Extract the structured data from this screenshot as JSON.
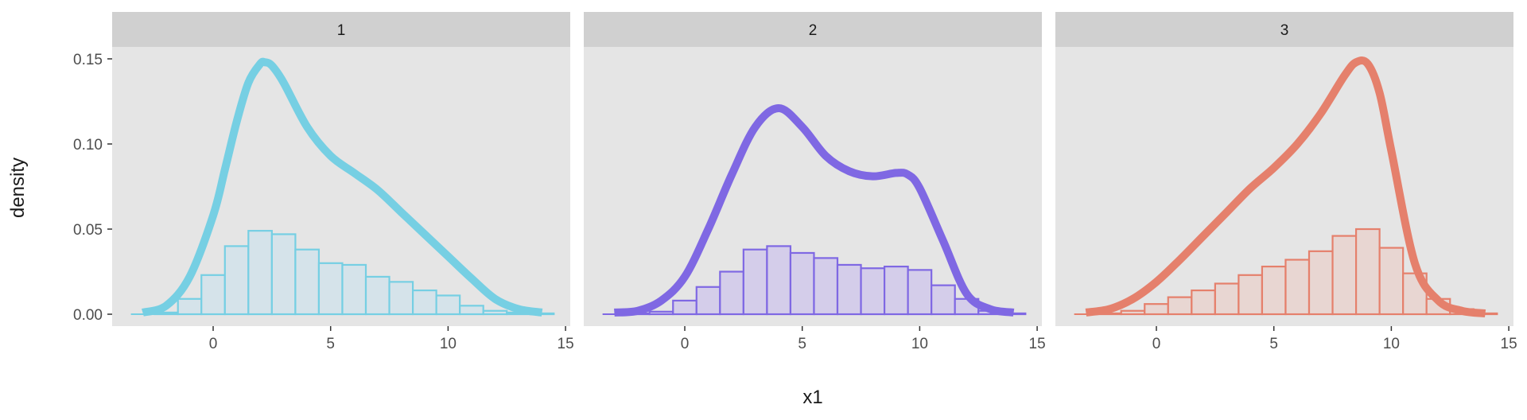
{
  "chart_data": {
    "type": "histogram+density",
    "xlabel": "x1",
    "ylabel": "density",
    "xlim": [
      -4.3,
      15.2
    ],
    "ylim": [
      -0.007,
      0.157
    ],
    "x_ticks": [
      0,
      5,
      10,
      15
    ],
    "y_ticks": [
      0.0,
      0.05,
      0.1,
      0.15
    ],
    "y_tick_labels": [
      "0.00",
      "0.05",
      "0.10",
      "0.15"
    ],
    "x_tick_labels": [
      "0",
      "5",
      "10",
      "15"
    ],
    "bin_width": 1,
    "panel_background": "#e5e5e5",
    "strip_background": "#d0d0d0",
    "facets": [
      {
        "label": "1",
        "color": "#76cfe3",
        "fill": "#d5e3ea",
        "range": [
          -3.5,
          14.5
        ],
        "bins": {
          "left_edges": [
            -2.5,
            -1.5,
            -0.5,
            0.5,
            1.5,
            2.5,
            3.5,
            4.5,
            5.5,
            6.5,
            7.5,
            8.5,
            9.5,
            10.5,
            11.5,
            12.5,
            13.5
          ],
          "densities": [
            0.001,
            0.009,
            0.023,
            0.04,
            0.049,
            0.047,
            0.038,
            0.03,
            0.029,
            0.022,
            0.019,
            0.014,
            0.011,
            0.005,
            0.002,
            0.001,
            0.0005
          ]
        },
        "density": {
          "x": [
            -3,
            -2,
            -1,
            0,
            0.5,
            1,
            1.5,
            2,
            2.2,
            2.5,
            3,
            4,
            5,
            6,
            7,
            8,
            9,
            10,
            11,
            12,
            13,
            14
          ],
          "y": [
            0.001,
            0.005,
            0.022,
            0.058,
            0.085,
            0.113,
            0.136,
            0.147,
            0.148,
            0.146,
            0.136,
            0.11,
            0.093,
            0.083,
            0.073,
            0.06,
            0.047,
            0.034,
            0.021,
            0.009,
            0.003,
            0.001
          ]
        }
      },
      {
        "label": "2",
        "color": "#7f68e3",
        "fill": "#d4cdea",
        "range": [
          -3.5,
          14.5
        ],
        "bins": {
          "left_edges": [
            -2.5,
            -1.5,
            -0.5,
            0.5,
            1.5,
            2.5,
            3.5,
            4.5,
            5.5,
            6.5,
            7.5,
            8.5,
            9.5,
            10.5,
            11.5,
            12.5,
            13.5
          ],
          "densities": [
            0.0005,
            0.0015,
            0.008,
            0.016,
            0.025,
            0.038,
            0.04,
            0.036,
            0.033,
            0.029,
            0.027,
            0.028,
            0.026,
            0.017,
            0.009,
            0.002,
            0.0005
          ]
        },
        "density": {
          "x": [
            -3,
            -2,
            -1,
            0,
            1,
            2,
            3,
            4,
            5,
            6,
            7,
            8,
            9,
            9.5,
            10,
            11,
            12,
            13,
            14
          ],
          "y": [
            0.001,
            0.002,
            0.008,
            0.022,
            0.05,
            0.082,
            0.11,
            0.121,
            0.11,
            0.093,
            0.084,
            0.081,
            0.083,
            0.082,
            0.074,
            0.043,
            0.012,
            0.003,
            0.001
          ]
        }
      },
      {
        "label": "3",
        "color": "#e5806c",
        "fill": "#e8d6d2",
        "range": [
          -3.5,
          14.5
        ],
        "bins": {
          "left_edges": [
            -2.5,
            -1.5,
            -0.5,
            0.5,
            1.5,
            2.5,
            3.5,
            4.5,
            5.5,
            6.5,
            7.5,
            8.5,
            9.5,
            10.5,
            11.5,
            12.5,
            13.5
          ],
          "densities": [
            0.0005,
            0.002,
            0.006,
            0.01,
            0.014,
            0.018,
            0.023,
            0.028,
            0.032,
            0.037,
            0.046,
            0.05,
            0.039,
            0.024,
            0.009,
            0.003,
            0.0005
          ]
        },
        "density": {
          "x": [
            -3,
            -2,
            -1,
            0,
            1,
            2,
            3,
            4,
            5,
            6,
            7,
            8,
            8.5,
            9,
            9.5,
            10,
            11,
            12,
            13,
            14
          ],
          "y": [
            0.001,
            0.003,
            0.009,
            0.019,
            0.032,
            0.046,
            0.06,
            0.074,
            0.086,
            0.1,
            0.118,
            0.14,
            0.148,
            0.147,
            0.13,
            0.096,
            0.03,
            0.008,
            0.002,
            0.0005
          ]
        }
      }
    ]
  }
}
